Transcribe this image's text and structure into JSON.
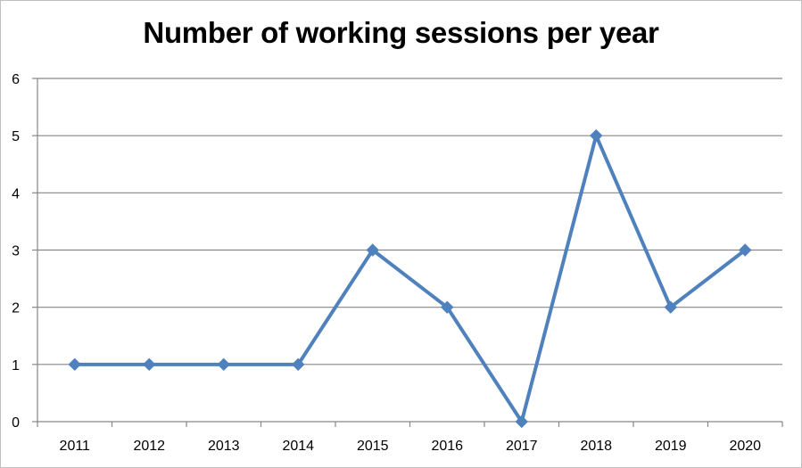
{
  "chart_data": {
    "type": "line",
    "title": "Number of working sessions per year",
    "categories": [
      "2011",
      "2012",
      "2013",
      "2014",
      "2015",
      "2016",
      "2017",
      "2018",
      "2019",
      "2020"
    ],
    "series": [
      {
        "values": [
          1,
          1,
          1,
          1,
          3,
          2,
          0,
          5,
          2,
          3
        ]
      }
    ],
    "xlabel": "",
    "ylabel": "",
    "ylim": [
      0,
      6
    ],
    "yticks": [
      "0",
      "1",
      "2",
      "3",
      "4",
      "5",
      "6"
    ],
    "grid": true,
    "legend": "none",
    "colors": {
      "line": "#4f81bd",
      "grid": "#868686",
      "axis": "#868686"
    },
    "marker": "diamond"
  }
}
